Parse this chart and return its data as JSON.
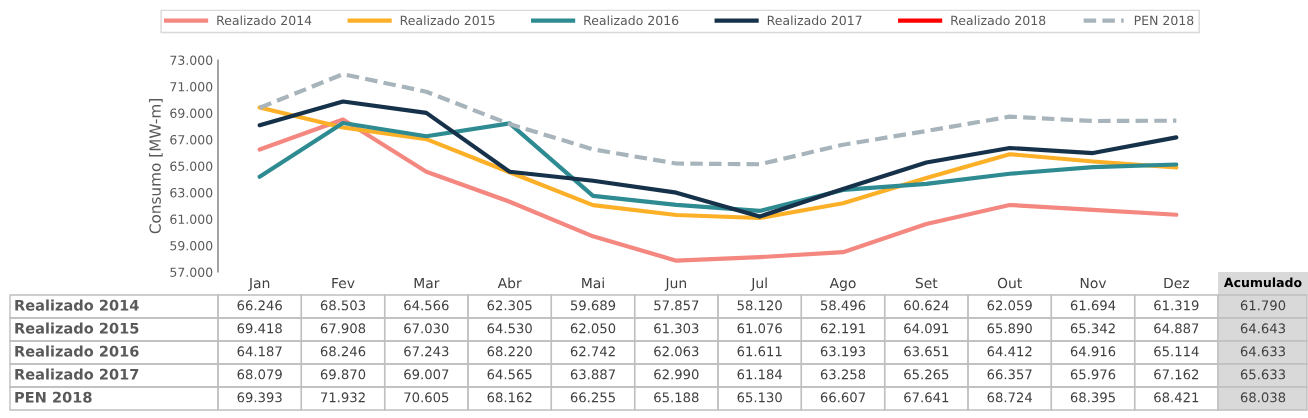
{
  "chart_data": {
    "type": "line",
    "ylabel": "Consumo [MW-m]",
    "categories": [
      "Jan",
      "Fev",
      "Mar",
      "Abr",
      "Mai",
      "Jun",
      "Jul",
      "Ago",
      "Set",
      "Out",
      "Nov",
      "Dez"
    ],
    "ylim": [
      57000,
      73000
    ],
    "yticks": [
      {
        "value": 57000,
        "label": "57.000"
      },
      {
        "value": 59000,
        "label": "59.000"
      },
      {
        "value": 61000,
        "label": "61.000"
      },
      {
        "value": 63000,
        "label": "63.000"
      },
      {
        "value": 65000,
        "label": "65.000"
      },
      {
        "value": 67000,
        "label": "67.000"
      },
      {
        "value": 69000,
        "label": "69.000"
      },
      {
        "value": 71000,
        "label": "71.000"
      },
      {
        "value": 73000,
        "label": "73.000"
      }
    ],
    "grid": false,
    "legend": "top",
    "marker": "none",
    "series": [
      {
        "name": "Realizado 2014",
        "color": "#f4877f",
        "line_style": "solid",
        "values": [
          66246,
          68503,
          64566,
          62305,
          59689,
          57857,
          58120,
          58496,
          60624,
          62059,
          61694,
          61319
        ],
        "value_labels": [
          "66.246",
          "68.503",
          "64.566",
          "62.305",
          "59.689",
          "57.857",
          "58.120",
          "58.496",
          "60.624",
          "62.059",
          "61.694",
          "61.319"
        ]
      },
      {
        "name": "Realizado 2015",
        "color": "#fbb028",
        "line_style": "solid",
        "values": [
          69418,
          67908,
          67030,
          64530,
          62050,
          61303,
          61076,
          62191,
          64091,
          65890,
          65342,
          64887
        ],
        "value_labels": [
          "69.418",
          "67.908",
          "67.030",
          "64.530",
          "62.050",
          "61.303",
          "61.076",
          "62.191",
          "64.091",
          "65.890",
          "65.342",
          "64.887"
        ]
      },
      {
        "name": "Realizado 2016",
        "color": "#2e8b92",
        "line_style": "solid",
        "values": [
          64187,
          68246,
          67243,
          68220,
          62742,
          62063,
          61611,
          63193,
          63651,
          64412,
          64916,
          65114
        ],
        "value_labels": [
          "64.187",
          "68.246",
          "67.243",
          "68.220",
          "62.742",
          "62.063",
          "61.611",
          "63.193",
          "63.651",
          "64.412",
          "64.916",
          "65.114"
        ]
      },
      {
        "name": "Realizado 2017",
        "color": "#16324a",
        "line_style": "solid",
        "values": [
          68079,
          69870,
          69007,
          64565,
          63887,
          62990,
          61184,
          63258,
          65265,
          66357,
          65976,
          67162
        ],
        "value_labels": [
          "68.079",
          "69.870",
          "69.007",
          "64.565",
          "63.887",
          "62.990",
          "61.184",
          "63.258",
          "65.265",
          "66.357",
          "65.976",
          "67.162"
        ]
      },
      {
        "name": "Realizado 2018",
        "color": "#ff0000",
        "line_style": "solid",
        "values": [
          null,
          null,
          null,
          null,
          null,
          null,
          null,
          null,
          null,
          null,
          null,
          null
        ]
      },
      {
        "name": "PEN 2018",
        "color": "#a8b4bb",
        "line_style": "dashed",
        "values": [
          69393,
          71932,
          70605,
          68162,
          66255,
          65188,
          65130,
          66607,
          67641,
          68724,
          68395,
          68421
        ],
        "value_labels": [
          "69.393",
          "71.932",
          "70.605",
          "68.162",
          "66.255",
          "65.188",
          "65.130",
          "66.607",
          "67.641",
          "68.724",
          "68.395",
          "68.421"
        ]
      }
    ],
    "annotations": [
      "Acumulado",
      "61.790",
      "64.643",
      "64.633",
      "65.633",
      "68.038"
    ]
  }
}
